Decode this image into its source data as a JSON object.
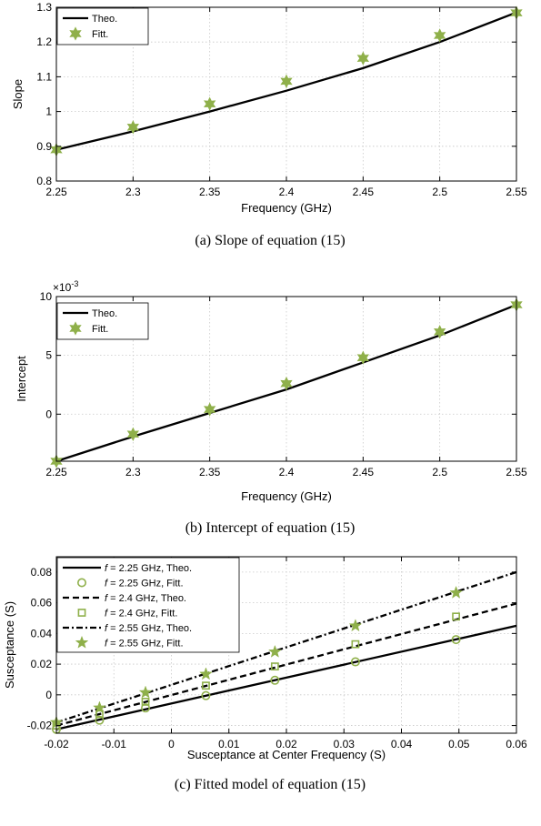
{
  "chart_data": [
    {
      "type": "line",
      "xlabel": "Frequency (GHz)",
      "ylabel": "Slope",
      "xlim": [
        2.25,
        2.55
      ],
      "ylim": [
        0.8,
        1.3
      ],
      "xticks": [
        2.25,
        2.3,
        2.35,
        2.4,
        2.45,
        2.5,
        2.55
      ],
      "xtick_labels": [
        "2.25",
        "2.3",
        "2.35",
        "2.4",
        "2.45",
        "2.5",
        "2.55"
      ],
      "yticks": [
        0.8,
        0.9,
        1.0,
        1.1,
        1.2,
        1.3
      ],
      "ytick_labels": [
        "0.8",
        "0.9",
        "1",
        "1.1",
        "1.2",
        "1.3"
      ],
      "grid": true,
      "legend_position": "top-left",
      "caption": "(a) Slope of equation (15)",
      "series": [
        {
          "name": "Theo.",
          "style": "solid",
          "color": "#000000",
          "x": [
            2.25,
            2.3,
            2.35,
            2.4,
            2.45,
            2.5,
            2.55
          ],
          "y": [
            0.89,
            0.943,
            1.0,
            1.06,
            1.125,
            1.2,
            1.285
          ]
        },
        {
          "name": "Fitt.",
          "style": "hexagram",
          "color": "#8fb04a",
          "x": [
            2.25,
            2.3,
            2.35,
            2.4,
            2.45,
            2.5,
            2.55
          ],
          "y": [
            0.89,
            0.955,
            1.022,
            1.087,
            1.153,
            1.219,
            1.284
          ]
        }
      ]
    },
    {
      "type": "line",
      "xlabel": "Frequency (GHz)",
      "ylabel": "Intercept",
      "exponent_label": "×10",
      "exponent_power": "-3",
      "xlim": [
        2.25,
        2.55
      ],
      "ylim": [
        -4.0,
        10.0
      ],
      "xticks": [
        2.25,
        2.3,
        2.35,
        2.4,
        2.45,
        2.5,
        2.55
      ],
      "xtick_labels": [
        "2.25",
        "2.3",
        "2.35",
        "2.4",
        "2.45",
        "2.5",
        "2.55"
      ],
      "yticks": [
        0,
        5,
        10
      ],
      "ytick_labels": [
        "0",
        "5",
        "10"
      ],
      "grid": true,
      "legend_position": "top-left",
      "caption": "(b) Intercept of equation (15)",
      "series": [
        {
          "name": "Theo.",
          "style": "solid",
          "color": "#000000",
          "x": [
            2.25,
            2.3,
            2.35,
            2.4,
            2.45,
            2.5,
            2.55
          ],
          "y": [
            -4.0,
            -1.9,
            0.1,
            2.1,
            4.4,
            6.7,
            9.3
          ]
        },
        {
          "name": "Fitt.",
          "style": "hexagram",
          "color": "#8fb04a",
          "x": [
            2.25,
            2.3,
            2.35,
            2.4,
            2.45,
            2.5,
            2.55
          ],
          "y": [
            -4.0,
            -1.7,
            0.4,
            2.6,
            4.8,
            7.0,
            9.3
          ]
        }
      ]
    },
    {
      "type": "line",
      "xlabel": "Susceptance at Center Frequency (S)",
      "ylabel": "Susceptance (S)",
      "xlim": [
        -0.02,
        0.06
      ],
      "ylim": [
        -0.025,
        0.09
      ],
      "xticks": [
        -0.02,
        -0.01,
        0,
        0.01,
        0.02,
        0.03,
        0.04,
        0.05,
        0.06
      ],
      "xtick_labels": [
        "-0.02",
        "-0.01",
        "0",
        "0.01",
        "0.02",
        "0.03",
        "0.04",
        "0.05",
        "0.06"
      ],
      "yticks": [
        -0.02,
        0,
        0.02,
        0.04,
        0.06,
        0.08
      ],
      "ytick_labels": [
        "-0.02",
        "0",
        "0.02",
        "0.04",
        "0.06",
        "0.08"
      ],
      "grid": true,
      "legend_position": "top-left",
      "caption": "(c) Fitted model of equation (15)",
      "series": [
        {
          "legend_italic": "f",
          "name": " = 2.25 GHz, Theo.",
          "style": "solid",
          "color": "#000000",
          "x": [
            -0.02,
            0.06
          ],
          "y": [
            -0.0225,
            0.045
          ]
        },
        {
          "legend_italic": "f",
          "name": " = 2.25 GHz, Fitt.",
          "style": "circle",
          "color": "#8fb04a",
          "x": [
            -0.02,
            -0.0125,
            -0.0045,
            0.006,
            0.018,
            0.032,
            0.0495
          ],
          "y": [
            -0.0225,
            -0.0165,
            -0.0085,
            -0.0005,
            0.0095,
            0.0215,
            0.036
          ]
        },
        {
          "legend_italic": "f",
          "name": " = 2.4 GHz, Theo.",
          "style": "dashed",
          "color": "#000000",
          "x": [
            -0.02,
            0.06
          ],
          "y": [
            -0.02,
            0.0595
          ]
        },
        {
          "legend_italic": "f",
          "name": " = 2.4 GHz, Fitt.",
          "style": "square",
          "color": "#8fb04a",
          "x": [
            -0.02,
            -0.0125,
            -0.0045,
            0.006,
            0.018,
            0.032,
            0.0495
          ],
          "y": [
            -0.02,
            -0.0125,
            -0.0045,
            0.006,
            0.0185,
            0.033,
            0.051
          ]
        },
        {
          "legend_italic": "f",
          "name": " = 2.55 GHz, Theo.",
          "style": "dashdot",
          "color": "#000000",
          "x": [
            -0.02,
            0.06
          ],
          "y": [
            -0.018,
            0.08
          ]
        },
        {
          "legend_italic": "f",
          "name": " = 2.55 GHz, Fitt.",
          "style": "star",
          "color": "#8fb04a",
          "x": [
            -0.02,
            -0.0125,
            -0.0045,
            0.006,
            0.018,
            0.032,
            0.0495
          ],
          "y": [
            -0.018,
            -0.0085,
            0.0015,
            0.0135,
            0.028,
            0.045,
            0.0665
          ]
        }
      ]
    }
  ]
}
